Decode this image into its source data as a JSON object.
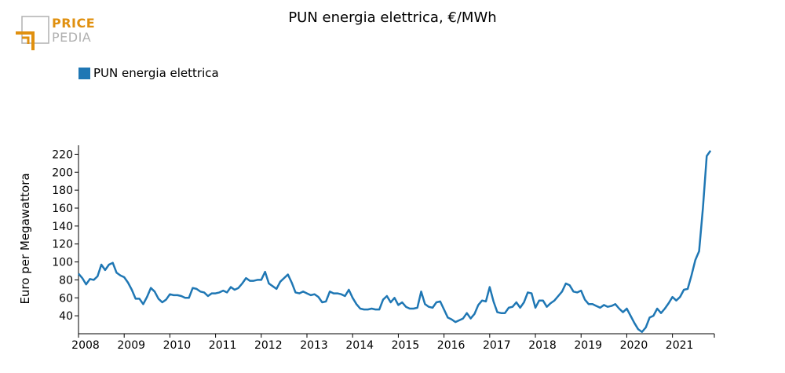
{
  "logo": {
    "word1": "PRICE",
    "word2": "PEDIA",
    "colors": {
      "orange": "#e0900f",
      "gray": "#b0b0b0"
    }
  },
  "chart_data": {
    "type": "line",
    "title": "PUN energia elettrica, €/MWh",
    "xlabel": "",
    "ylabel": "Euro per Megawattora",
    "legend": "top-left",
    "grid": false,
    "xlim": [
      2008,
      2021.917
    ],
    "ylim": [
      20,
      230
    ],
    "x_ticks": [
      "2008",
      "2009",
      "2010",
      "2011",
      "2012",
      "2013",
      "2014",
      "2015",
      "2016",
      "2017",
      "2018",
      "2019",
      "2020",
      "2021"
    ],
    "y_ticks": [
      "40",
      "60",
      "80",
      "100",
      "120",
      "140",
      "160",
      "180",
      "200",
      "220"
    ],
    "series": [
      {
        "name": "PUN energia elettrica",
        "color": "#1f77b4",
        "start": "2008-01",
        "frequency": "monthly",
        "values": [
          87,
          82,
          75,
          81,
          80,
          84,
          97,
          91,
          97,
          99,
          88,
          85,
          83,
          77,
          69,
          59,
          59,
          53,
          61,
          71,
          67,
          59,
          55,
          58,
          64,
          63,
          63,
          62,
          60,
          60,
          71,
          70,
          67,
          66,
          62,
          65,
          65,
          66,
          68,
          66,
          72,
          69,
          71,
          76,
          82,
          79,
          79,
          80,
          80,
          89,
          76,
          73,
          70,
          78,
          82,
          86,
          77,
          66,
          65,
          67,
          65,
          63,
          64,
          61,
          55,
          56,
          67,
          65,
          65,
          64,
          62,
          69,
          60,
          53,
          48,
          47,
          47,
          48,
          47,
          47,
          58,
          62,
          55,
          60,
          52,
          55,
          50,
          48,
          48,
          49,
          67,
          53,
          50,
          49,
          55,
          56,
          47,
          38,
          36,
          33,
          35,
          37,
          43,
          37,
          42,
          52,
          57,
          56,
          72,
          56,
          44,
          43,
          43,
          49,
          50,
          55,
          49,
          55,
          66,
          65,
          49,
          57,
          57,
          50,
          54,
          57,
          62,
          67,
          76,
          74,
          67,
          66,
          68,
          58,
          53,
          53,
          51,
          49,
          52,
          50,
          51,
          53,
          48,
          44,
          48,
          40,
          32,
          25,
          22,
          27,
          38,
          40,
          48,
          43,
          48,
          54,
          61,
          57,
          61,
          69,
          70,
          85,
          102,
          112,
          160,
          218,
          224
        ]
      }
    ]
  }
}
